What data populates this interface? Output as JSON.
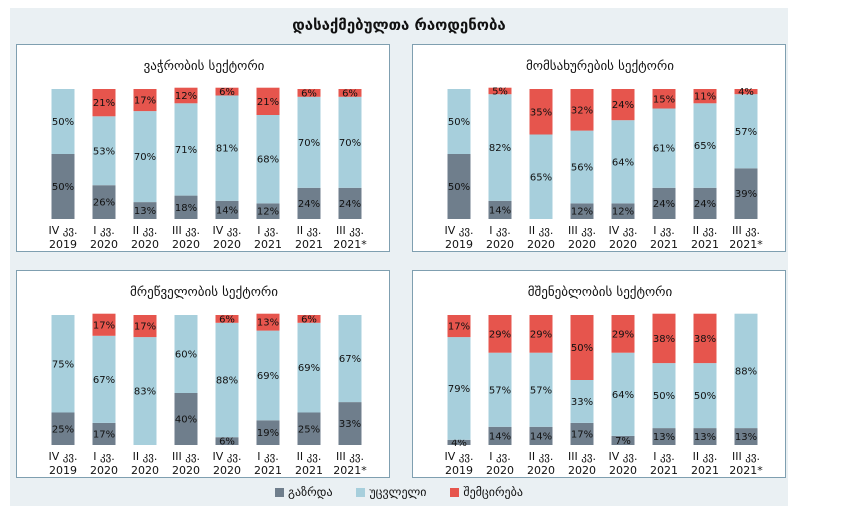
{
  "title": "დასაქმებულთა რაოდენობა",
  "colors": {
    "increase": "#6f7e8c",
    "unchanged": "#a7cfdc",
    "decrease": "#e6554d"
  },
  "legend": [
    "გაზრდა",
    "უცვლელი",
    "შემცირება"
  ],
  "chart_data": [
    {
      "type": "bar",
      "stacked": true,
      "title": "ვაჭრობის სექტორი",
      "categories": [
        [
          "IV კვ.",
          "2019"
        ],
        [
          "I კვ.",
          "2020"
        ],
        [
          "II კვ.",
          "2020"
        ],
        [
          "III კვ.",
          "2020"
        ],
        [
          "IV კვ.",
          "2020"
        ],
        [
          "I კვ.",
          "2021"
        ],
        [
          "II კვ.",
          "2021"
        ],
        [
          "III კვ.",
          "2021*"
        ]
      ],
      "series": [
        {
          "name": "გაზრდა",
          "values": [
            50,
            26,
            13,
            18,
            14,
            12,
            24,
            24
          ]
        },
        {
          "name": "უცვლელი",
          "values": [
            50,
            53,
            70,
            71,
            81,
            68,
            70,
            70
          ]
        },
        {
          "name": "შემცირება",
          "values": [
            0,
            21,
            17,
            12,
            6,
            21,
            6,
            6
          ]
        }
      ],
      "ylim": [
        0,
        100
      ]
    },
    {
      "type": "bar",
      "stacked": true,
      "title": "მომსახურების სექტორი",
      "categories": [
        [
          "IV კვ.",
          "2019"
        ],
        [
          "I კვ.",
          "2020"
        ],
        [
          "II კვ.",
          "2020"
        ],
        [
          "III კვ.",
          "2020"
        ],
        [
          "IV კვ.",
          "2020"
        ],
        [
          "I კვ.",
          "2021"
        ],
        [
          "II კვ.",
          "2021"
        ],
        [
          "III კვ.",
          "2021*"
        ]
      ],
      "series": [
        {
          "name": "გაზრდა",
          "values": [
            50,
            14,
            0,
            12,
            12,
            24,
            24,
            39
          ]
        },
        {
          "name": "უცვლელი",
          "values": [
            50,
            82,
            65,
            56,
            64,
            61,
            65,
            57
          ]
        },
        {
          "name": "შემცირება",
          "values": [
            0,
            5,
            35,
            32,
            24,
            15,
            11,
            4
          ]
        }
      ],
      "ylim": [
        0,
        100
      ]
    },
    {
      "type": "bar",
      "stacked": true,
      "title": "მრეწველობის სექტორი",
      "categories": [
        [
          "IV კვ.",
          "2019"
        ],
        [
          "I კვ.",
          "2020"
        ],
        [
          "II კვ.",
          "2020"
        ],
        [
          "III კვ.",
          "2020"
        ],
        [
          "IV კვ.",
          "2020"
        ],
        [
          "I კვ.",
          "2021"
        ],
        [
          "II კვ.",
          "2021"
        ],
        [
          "III კვ.",
          "2021*"
        ]
      ],
      "series": [
        {
          "name": "გაზრდა",
          "values": [
            25,
            17,
            0,
            40,
            6,
            19,
            25,
            33
          ]
        },
        {
          "name": "უცვლელი",
          "values": [
            75,
            67,
            83,
            60,
            88,
            69,
            69,
            67
          ]
        },
        {
          "name": "შემცირება",
          "values": [
            0,
            17,
            17,
            0,
            6,
            13,
            6,
            0
          ]
        }
      ],
      "ylim": [
        0,
        100
      ]
    },
    {
      "type": "bar",
      "stacked": true,
      "title": "მშენებლობის სექტორი",
      "categories": [
        [
          "IV კვ.",
          "2019"
        ],
        [
          "I კვ.",
          "2020"
        ],
        [
          "II კვ.",
          "2020"
        ],
        [
          "III კვ.",
          "2020"
        ],
        [
          "IV კვ.",
          "2020"
        ],
        [
          "I კვ.",
          "2021"
        ],
        [
          "II კვ.",
          "2021"
        ],
        [
          "III კვ.",
          "2021*"
        ]
      ],
      "series": [
        {
          "name": "გაზრდა",
          "values": [
            4,
            14,
            14,
            17,
            7,
            13,
            13,
            13
          ]
        },
        {
          "name": "უცვლელი",
          "values": [
            79,
            57,
            57,
            33,
            64,
            50,
            50,
            88
          ]
        },
        {
          "name": "შემცირება",
          "values": [
            17,
            29,
            29,
            50,
            29,
            38,
            38,
            0
          ]
        }
      ],
      "ylim": [
        0,
        100
      ]
    }
  ]
}
